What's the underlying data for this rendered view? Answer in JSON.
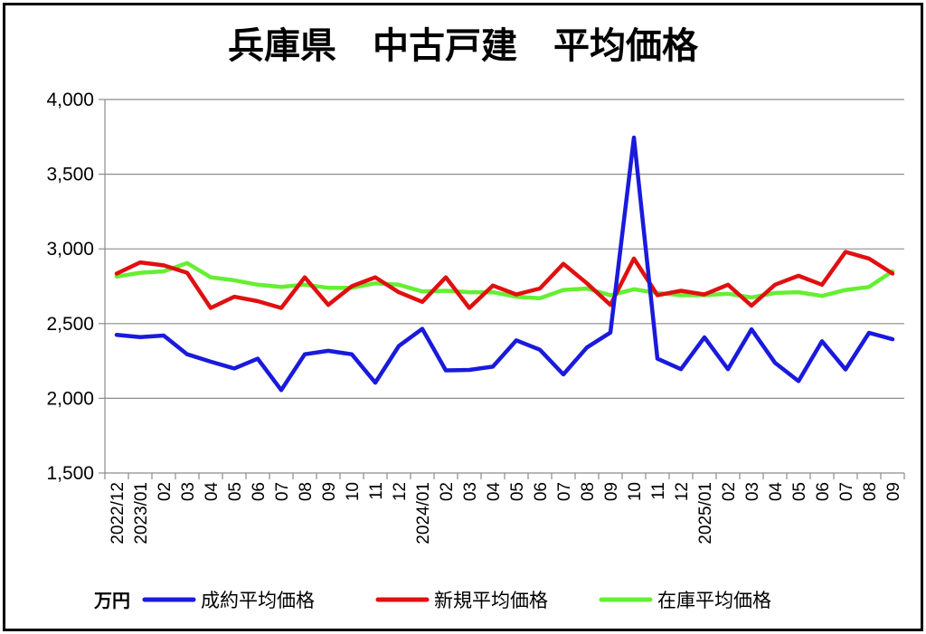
{
  "chart_data": {
    "type": "line",
    "title": "兵庫県　中古戸建　平均価格",
    "unit_label": "万円",
    "ylim": [
      1500,
      4000
    ],
    "yticks": [
      1500,
      2000,
      2500,
      3000,
      3500,
      4000
    ],
    "ytick_labels": [
      "1,500",
      "2,000",
      "2,500",
      "3,000",
      "3,500",
      "4,000"
    ],
    "grid": true,
    "legend_position": "bottom",
    "categories": [
      "2022/12",
      "2023/01",
      "02",
      "03",
      "04",
      "05",
      "06",
      "07",
      "08",
      "09",
      "10",
      "11",
      "12",
      "2024/01",
      "02",
      "03",
      "04",
      "05",
      "06",
      "07",
      "08",
      "09",
      "10",
      "11",
      "12",
      "2025/01",
      "02",
      "03",
      "04",
      "05",
      "06",
      "07",
      "08",
      "09"
    ],
    "series": [
      {
        "name": "成約平均価格",
        "color": "#1a1adc",
        "values": [
          2425,
          2410,
          2420,
          2295,
          2245,
          2200,
          2265,
          2055,
          2295,
          2318,
          2295,
          2105,
          2350,
          2465,
          2187,
          2190,
          2212,
          2388,
          2325,
          2160,
          2340,
          2440,
          3745,
          2265,
          2195,
          2408,
          2195,
          2462,
          2238,
          2115,
          2382,
          2193,
          2438,
          2395
        ]
      },
      {
        "name": "新規平均価格",
        "color": "#e01010",
        "values": [
          2835,
          2910,
          2890,
          2840,
          2605,
          2680,
          2650,
          2605,
          2810,
          2625,
          2750,
          2810,
          2710,
          2645,
          2810,
          2605,
          2755,
          2695,
          2735,
          2900,
          2770,
          2625,
          2935,
          2690,
          2720,
          2695,
          2760,
          2620,
          2760,
          2820,
          2760,
          2980,
          2935,
          2835
        ]
      },
      {
        "name": "在庫平均価格",
        "color": "#66ee33",
        "values": [
          2815,
          2840,
          2850,
          2905,
          2810,
          2790,
          2760,
          2745,
          2760,
          2740,
          2740,
          2770,
          2760,
          2715,
          2720,
          2710,
          2710,
          2680,
          2670,
          2725,
          2735,
          2690,
          2730,
          2705,
          2690,
          2690,
          2700,
          2675,
          2705,
          2710,
          2685,
          2725,
          2745,
          2850
        ]
      }
    ]
  }
}
